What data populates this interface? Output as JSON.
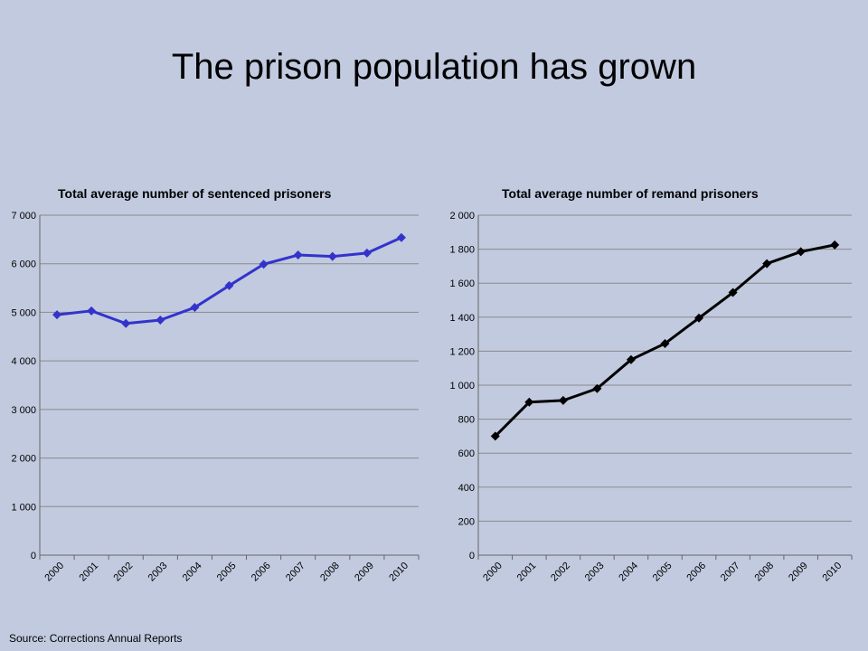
{
  "slide": {
    "title": "The prison population has grown",
    "source": "Source: Corrections Annual Reports"
  },
  "chart_data": [
    {
      "type": "line",
      "title": "Total average number of sentenced prisoners",
      "categories": [
        "2000",
        "2001",
        "2002",
        "2003",
        "2004",
        "2005",
        "2006",
        "2007",
        "2008",
        "2009",
        "2010"
      ],
      "series": [
        {
          "values": [
            4950,
            5030,
            4770,
            4840,
            5100,
            5550,
            5990,
            6180,
            6150,
            6220,
            6540
          ]
        }
      ],
      "yticks": [
        "0",
        "1 000",
        "2 000",
        "3 000",
        "4 000",
        "5 000",
        "6 000",
        "7 000"
      ],
      "ylim": [
        0,
        7000
      ],
      "grid": true,
      "color": "#3333cc"
    },
    {
      "type": "line",
      "title": "Total average number of remand prisoners",
      "categories": [
        "2000",
        "2001",
        "2002",
        "2003",
        "2004",
        "2005",
        "2006",
        "2007",
        "2008",
        "2009",
        "2010"
      ],
      "series": [
        {
          "values": [
            700,
            900,
            910,
            980,
            1150,
            1245,
            1395,
            1545,
            1715,
            1785,
            1825
          ]
        }
      ],
      "yticks": [
        "0",
        "200",
        "400",
        "600",
        "800",
        "1 000",
        "1 200",
        "1 400",
        "1 600",
        "1 800",
        "2 000"
      ],
      "ylim": [
        0,
        2000
      ],
      "grid": true,
      "color": "#000000"
    }
  ]
}
